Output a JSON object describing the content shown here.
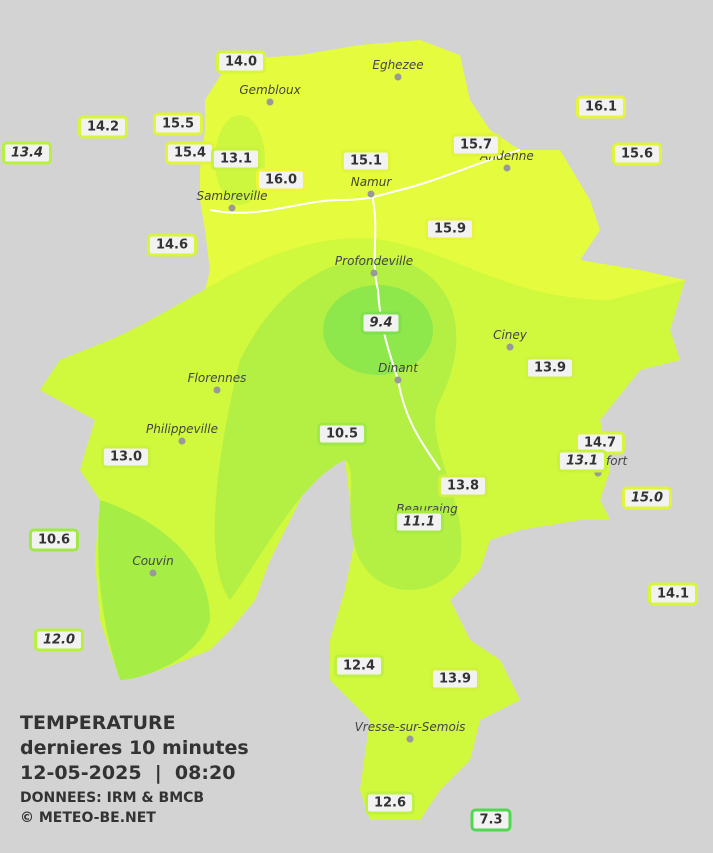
{
  "legend": {
    "title": "TEMPERATURE",
    "subtitle": "dernieres 10 minutes",
    "datetime": "12-05-2025  |  08:20",
    "source": "DONNEES: IRM & BMCB",
    "copyright": "© METEO-BE.NET"
  },
  "cities": [
    "Eghezee",
    "Gembloux",
    "Andenne",
    "Namur",
    "Sambreville",
    "Profondeville",
    "Ciney",
    "Dinant",
    "Florennes",
    "Philippeville",
    "Rochefort",
    "Beauraing",
    "Couvin",
    "Vresse-sur-Semois"
  ],
  "stations": [
    {
      "value": "14.0",
      "border": "#d8f53a",
      "italic": false
    },
    {
      "value": "16.1",
      "border": "#e6f53a",
      "italic": false
    },
    {
      "value": "14.2",
      "border": "#d8f53a",
      "italic": false
    },
    {
      "value": "15.5",
      "border": "#e0f53a",
      "italic": false
    },
    {
      "value": "13.4",
      "border": "#b8f040",
      "italic": true
    },
    {
      "value": "15.4",
      "border": "#e0f53a",
      "italic": false
    },
    {
      "value": "13.1",
      "border": "#c8f23e",
      "italic": false
    },
    {
      "value": "15.1",
      "border": "#e0f53a",
      "italic": false
    },
    {
      "value": "15.7",
      "border": "#e0f53a",
      "italic": false
    },
    {
      "value": "15.6",
      "border": "#e0f53a",
      "italic": false
    },
    {
      "value": "16.0",
      "border": "#eef53a",
      "italic": false
    },
    {
      "value": "14.6",
      "border": "#d8f53a",
      "italic": false
    },
    {
      "value": "15.9",
      "border": "#e6f53a",
      "italic": false
    },
    {
      "value": "9.4",
      "border": "#80e04a",
      "italic": true
    },
    {
      "value": "13.9",
      "border": "#d0f23e",
      "italic": false
    },
    {
      "value": "10.5",
      "border": "#a0e846",
      "italic": false
    },
    {
      "value": "14.7",
      "border": "#d8f53a",
      "italic": false
    },
    {
      "value": "13.1",
      "border": "#c8f23e",
      "italic": true
    },
    {
      "value": "13.0",
      "border": "#c8f23e",
      "italic": false
    },
    {
      "value": "13.8",
      "border": "#d0f23e",
      "italic": false
    },
    {
      "value": "15.0",
      "border": "#e0f53a",
      "italic": true
    },
    {
      "value": "11.1",
      "border": "#a8ea44",
      "italic": true
    },
    {
      "value": "10.6",
      "border": "#a0e846",
      "italic": false
    },
    {
      "value": "14.1",
      "border": "#d8f53a",
      "italic": false
    },
    {
      "value": "12.0",
      "border": "#b8f040",
      "italic": true
    },
    {
      "value": "12.4",
      "border": "#c0f040",
      "italic": false
    },
    {
      "value": "13.9",
      "border": "#d0f23e",
      "italic": false
    },
    {
      "value": "12.6",
      "border": "#c0f040",
      "italic": false
    },
    {
      "value": "7.3",
      "border": "#50d850",
      "italic": false
    }
  ]
}
